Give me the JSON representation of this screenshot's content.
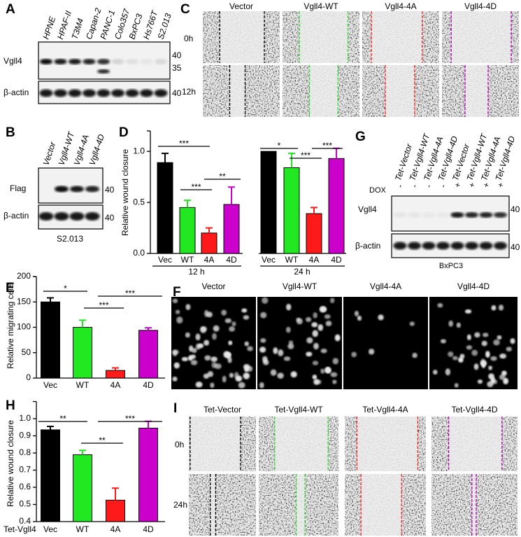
{
  "panels": {
    "A": {
      "label": "A",
      "lanes": [
        "HPNE",
        "HPAF-II",
        "T3M4",
        "Capan-2",
        "PANC-1",
        "Colo357",
        "BxPC3",
        "Hs766T",
        "S2.013"
      ],
      "rows": [
        "Vgll4",
        "β-actin"
      ],
      "markers": [
        "40",
        "35",
        "40"
      ]
    },
    "B": {
      "label": "B",
      "lanes": [
        "Vector",
        "Vgll4-WT",
        "Vgll4-4A",
        "Vgll4-4D"
      ],
      "rows": [
        "Flag",
        "β-actin"
      ],
      "markers": [
        "40",
        "40"
      ],
      "cell_line": "S2.013"
    },
    "C": {
      "label": "C",
      "columns": [
        "Vector",
        "Vgll4-WT",
        "Vgll4-4A",
        "Vgll4-4D"
      ],
      "rows": [
        "0h",
        "12h"
      ]
    },
    "F": {
      "label": "F",
      "columns": [
        "Vector",
        "Vgll4-WT",
        "Vgll4-4A",
        "Vgll4-4D"
      ]
    },
    "G": {
      "label": "G",
      "dox_label": "DOX",
      "dox": [
        "-",
        "-",
        "-",
        "-",
        "+",
        "+",
        "+",
        "+"
      ],
      "lanes": [
        "Tet-Vector",
        "Tet-Vgll4-WT",
        "Tet-Vgll4-4A",
        "Tet-Vgll4-4D",
        "Tet-Vector",
        "Tet-Vgll4-WT",
        "Tet-Vgll4-4A",
        "Tet-Vgll4-4D"
      ],
      "rows": [
        "Vgll4",
        "β-actin"
      ],
      "markers": [
        "40",
        "40"
      ],
      "cell_line": "BxPC3"
    },
    "I": {
      "label": "I",
      "columns": [
        "Tet-Vector",
        "Tet-Vgll4-WT",
        "Tet-Vgll4-4A",
        "Tet-Vgll4-4D"
      ],
      "rows": [
        "0h",
        "24h"
      ]
    }
  },
  "chart_data": [
    {
      "type": "bar",
      "panel_label": "D",
      "y_label": "Relative wound closure",
      "categories": [
        "Vec",
        "WT",
        "4A",
        "4D",
        "Vec",
        "WT",
        "4A",
        "4D"
      ],
      "groups": [
        "12 h",
        "24 h"
      ],
      "values": [
        0.89,
        0.45,
        0.2,
        0.48,
        1.0,
        0.84,
        0.39,
        0.93
      ],
      "errors": [
        0.09,
        0.07,
        0.05,
        0.17,
        0,
        0.14,
        0.06,
        0.1
      ],
      "colors": [
        "#000000",
        "#22e822",
        "#ff1a1a",
        "#cc00cc",
        "#000000",
        "#22e822",
        "#ff1a1a",
        "#cc00cc"
      ],
      "ylim": [
        0,
        1.2
      ],
      "yticks": [
        {
          "value": 0,
          "label": "0.0"
        },
        0.5,
        {
          "value": 1,
          "label": "1.0"
        }
      ],
      "annotations": [
        "***",
        "***",
        "**",
        "*",
        "***",
        "***"
      ]
    },
    {
      "type": "bar",
      "panel_label": "E",
      "y_label": "Relative migrating cells",
      "categories": [
        "Vec",
        "WT",
        "4A",
        "4D"
      ],
      "values": [
        150,
        100,
        15,
        94
      ],
      "errors": [
        8,
        14,
        5,
        5
      ],
      "colors": [
        "#000000",
        "#22e822",
        "#ff1a1a",
        "#cc00cc"
      ],
      "ylim": [
        0,
        200
      ],
      "yticks": [
        0,
        50,
        100,
        150,
        200
      ],
      "annotations": [
        "*",
        "***",
        "***"
      ]
    },
    {
      "type": "bar",
      "panel_label": "H",
      "y_label": "Relative wound closure",
      "x_label": "Tet-Vgll4",
      "categories": [
        "Vec",
        "WT",
        "4A",
        "4D"
      ],
      "values": [
        0.935,
        0.79,
        0.525,
        0.945
      ],
      "errors": [
        0.02,
        0.025,
        0.07,
        0.04
      ],
      "colors": [
        "#000000",
        "#22e822",
        "#ff1a1a",
        "#cc00cc"
      ],
      "ylim": [
        0.4,
        1.1
      ],
      "yticks": [
        0.4,
        0.5,
        0.6,
        0.7,
        0.8,
        0.9,
        {
          "value": 1,
          "label": "1.0"
        }
      ],
      "annotations": [
        "**",
        "**",
        "***"
      ]
    }
  ]
}
